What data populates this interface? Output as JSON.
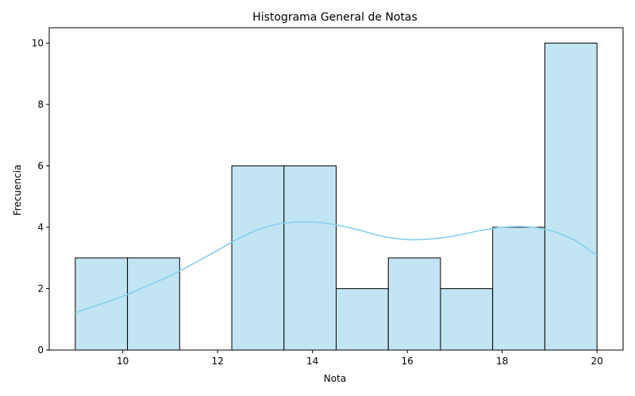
{
  "chart_data": {
    "type": "bar",
    "title": "Histograma General de Notas",
    "xlabel": "Nota",
    "ylabel": "Frecuencia",
    "xlim": [
      8.45,
      20.55
    ],
    "ylim": [
      0,
      10.5
    ],
    "bins": [
      {
        "start": 9.0,
        "end": 10.1,
        "count": 3
      },
      {
        "start": 10.1,
        "end": 11.2,
        "count": 3
      },
      {
        "start": 11.2,
        "end": 12.3,
        "count": 0
      },
      {
        "start": 12.3,
        "end": 13.4,
        "count": 6
      },
      {
        "start": 13.4,
        "end": 14.5,
        "count": 6
      },
      {
        "start": 14.5,
        "end": 15.6,
        "count": 2
      },
      {
        "start": 15.6,
        "end": 16.7,
        "count": 3
      },
      {
        "start": 16.7,
        "end": 17.8,
        "count": 2
      },
      {
        "start": 17.8,
        "end": 18.9,
        "count": 4
      },
      {
        "start": 18.9,
        "end": 20.0,
        "count": 10
      }
    ],
    "kde": {
      "x": [
        9.0,
        9.5,
        10.0,
        10.5,
        11.0,
        11.5,
        12.0,
        12.5,
        13.0,
        13.5,
        14.0,
        14.5,
        15.0,
        15.5,
        16.0,
        16.5,
        17.0,
        17.5,
        18.0,
        18.5,
        19.0,
        19.5,
        20.0
      ],
      "y": [
        1.22,
        1.48,
        1.75,
        2.08,
        2.42,
        2.82,
        3.25,
        3.68,
        4.0,
        4.15,
        4.17,
        4.08,
        3.9,
        3.7,
        3.6,
        3.62,
        3.72,
        3.88,
        4.0,
        4.02,
        3.9,
        3.6,
        3.08
      ]
    },
    "xticks": [
      10,
      12,
      14,
      16,
      18,
      20
    ],
    "yticks": [
      0,
      2,
      4,
      6,
      8,
      10
    ],
    "grid": false,
    "colors": {
      "bar_fill": "#c2e5f3",
      "bar_edge": "#000000",
      "kde_line": "#87ceeb"
    }
  }
}
